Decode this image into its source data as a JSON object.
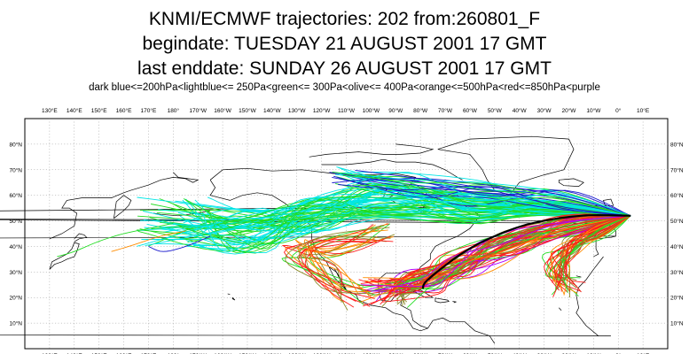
{
  "header": {
    "title_line1": "KNMI/ECMWF trajectories:  202 from:260801_F",
    "title_line2": "begindate:  TUESDAY   21 AUGUST    2001 17 GMT",
    "title_line3": "last enddate:  SUNDAY    26 AUGUST    2001 17 GMT",
    "legend": "dark blue<=200hPa<lightblue<= 250Pa<green<= 300Pa<olive<= 400Pa<orange<=500hPa<red<=850hPa<purple"
  },
  "map": {
    "lon_labels": [
      "130°E",
      "140°E",
      "150°E",
      "160°E",
      "170°E",
      "180°",
      "170°W",
      "160°W",
      "150°W",
      "140°W",
      "130°W",
      "120°W",
      "110°W",
      "100°W",
      "90°W",
      "80°W",
      "70°W",
      "60°W",
      "50°W",
      "40°W",
      "30°W",
      "20°W",
      "10°W",
      "0°",
      "10°E"
    ],
    "lat_labels": [
      "80°N",
      "70°N",
      "60°N",
      "50°N",
      "40°N",
      "30°N",
      "20°N",
      "10°N"
    ],
    "legend_colors": {
      "dark_blue": "#1a1acd",
      "light_blue": "#00e6e6",
      "green": "#22dd22",
      "olive": "#8c8c2a",
      "orange": "#ff8c00",
      "red": "#ff1a1a",
      "purple": "#b000ff",
      "mean_track": "#000000"
    }
  }
}
